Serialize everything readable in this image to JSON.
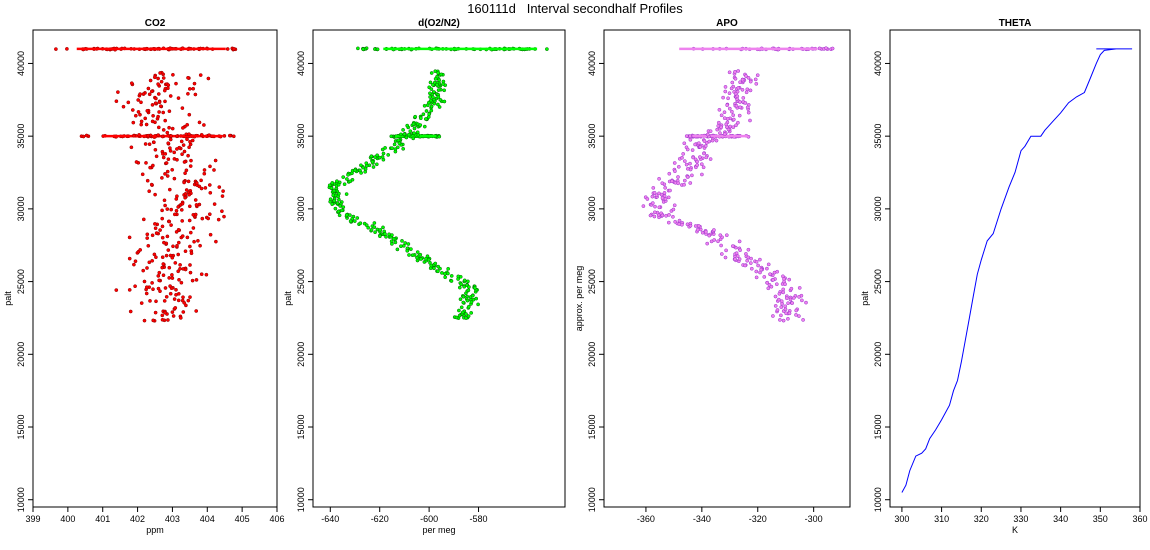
{
  "figure": {
    "title": "160111d   Interval secondhalf Profiles"
  },
  "chart_data": [
    {
      "type": "scatter",
      "title": "CO2",
      "xlabel": "ppm",
      "ylabel": "palt",
      "xlim": [
        399,
        406
      ],
      "ylim": [
        9500,
        42300
      ],
      "xticks": [
        399,
        400,
        401,
        402,
        403,
        404,
        405,
        406
      ],
      "yticks": [
        10000,
        15000,
        20000,
        25000,
        30000,
        35000,
        40000
      ],
      "color": "#ff0000",
      "edge_color": "#8b0000",
      "marker": "open-circle",
      "grid": false,
      "bands": [
        {
          "y": 41000,
          "x_range": [
            399.4,
            405.1
          ],
          "density": "dense"
        },
        {
          "y": 35000,
          "x_range": [
            400.3,
            404.9
          ],
          "density": "dense"
        }
      ],
      "profile": [
        {
          "y": 22300,
          "x": 403.0
        },
        {
          "y": 23500,
          "x": 403.2
        },
        {
          "y": 24500,
          "x": 402.5
        },
        {
          "y": 25500,
          "x": 403.0
        },
        {
          "y": 26500,
          "x": 402.7
        },
        {
          "y": 27500,
          "x": 403.0
        },
        {
          "y": 28500,
          "x": 403.2
        },
        {
          "y": 29500,
          "x": 403.5
        },
        {
          "y": 30500,
          "x": 403.3
        },
        {
          "y": 31500,
          "x": 403.6
        },
        {
          "y": 32500,
          "x": 403.2
        },
        {
          "y": 33500,
          "x": 403.0
        },
        {
          "y": 34500,
          "x": 402.9
        },
        {
          "y": 35500,
          "x": 402.8
        },
        {
          "y": 36500,
          "x": 402.6
        },
        {
          "y": 37500,
          "x": 402.5
        },
        {
          "y": 38500,
          "x": 402.6
        },
        {
          "y": 39500,
          "x": 402.8
        }
      ],
      "spread": 0.9
    },
    {
      "type": "scatter",
      "title": "d(O2/N2)",
      "xlabel": "per meg",
      "ylabel": "palt",
      "xlim": [
        -647,
        -545
      ],
      "ylim": [
        9500,
        42300
      ],
      "xticks": [
        -640,
        -620,
        -600,
        -580
      ],
      "yticks": [
        10000,
        15000,
        20000,
        25000,
        30000,
        35000,
        40000
      ],
      "color": "#00ff00",
      "edge_color": "#006400",
      "marker": "open-circle",
      "grid": false,
      "bands": [
        {
          "y": 41000,
          "x_range": [
            -631,
            -548
          ],
          "density": "dense"
        },
        {
          "y": 35000,
          "x_range": [
            -617,
            -595
          ],
          "density": "dense"
        }
      ],
      "profile": [
        {
          "y": 22300,
          "x": -588
        },
        {
          "y": 23500,
          "x": -584
        },
        {
          "y": 24500,
          "x": -583
        },
        {
          "y": 25500,
          "x": -592
        },
        {
          "y": 26500,
          "x": -603
        },
        {
          "y": 27500,
          "x": -611
        },
        {
          "y": 28500,
          "x": -620
        },
        {
          "y": 29500,
          "x": -634
        },
        {
          "y": 30500,
          "x": -638
        },
        {
          "y": 31500,
          "x": -639
        },
        {
          "y": 32500,
          "x": -629
        },
        {
          "y": 33500,
          "x": -620
        },
        {
          "y": 34500,
          "x": -612
        },
        {
          "y": 35500,
          "x": -607
        },
        {
          "y": 36500,
          "x": -601
        },
        {
          "y": 37500,
          "x": -597
        },
        {
          "y": 38500,
          "x": -596
        },
        {
          "y": 39500,
          "x": -596
        }
      ],
      "spread": 3.5
    },
    {
      "type": "scatter",
      "title": "APO",
      "xlabel": "",
      "ylabel": "approx. per meg",
      "xlim": [
        -375,
        -287
      ],
      "ylim": [
        9500,
        42300
      ],
      "xticks": [
        -360,
        -340,
        -320,
        -300
      ],
      "yticks": [
        10000,
        15000,
        20000,
        25000,
        30000,
        35000,
        40000
      ],
      "color": "#ee82ee",
      "edge_color": "#9932cc",
      "marker": "open-circle",
      "grid": false,
      "bands": [
        {
          "y": 41000,
          "x_range": [
            -358,
            -292
          ],
          "density": "sparse-left"
        },
        {
          "y": 35000,
          "x_range": [
            -347,
            -321
          ],
          "density": "dense"
        }
      ],
      "profile": [
        {
          "y": 22300,
          "x": -310
        },
        {
          "y": 23500,
          "x": -309
        },
        {
          "y": 24500,
          "x": -310
        },
        {
          "y": 25500,
          "x": -316
        },
        {
          "y": 26500,
          "x": -324
        },
        {
          "y": 27500,
          "x": -331
        },
        {
          "y": 28500,
          "x": -338
        },
        {
          "y": 29500,
          "x": -354
        },
        {
          "y": 30500,
          "x": -356
        },
        {
          "y": 31500,
          "x": -353
        },
        {
          "y": 32500,
          "x": -346
        },
        {
          "y": 33500,
          "x": -343
        },
        {
          "y": 34500,
          "x": -340
        },
        {
          "y": 35500,
          "x": -331
        },
        {
          "y": 36500,
          "x": -329
        },
        {
          "y": 37500,
          "x": -327
        },
        {
          "y": 38500,
          "x": -326
        },
        {
          "y": 39500,
          "x": -326
        }
      ],
      "spread": 5
    },
    {
      "type": "line",
      "title": "THETA",
      "xlabel": "K",
      "ylabel": "palt",
      "xlim": [
        297,
        360
      ],
      "ylim": [
        9500,
        42300
      ],
      "xticks": [
        300,
        310,
        320,
        330,
        340,
        350,
        360
      ],
      "yticks": [
        10000,
        15000,
        20000,
        25000,
        30000,
        35000,
        40000
      ],
      "color": "#0000ff",
      "grid": false,
      "x": [
        300.0,
        301.0,
        302.0,
        303.5,
        305.0,
        306.0,
        307.0,
        308.5,
        310.0,
        312.0,
        313.0,
        314.0,
        315.0,
        316.0,
        317.0,
        318.0,
        319.0,
        320.0,
        321.5,
        323.0,
        325.0,
        327.0,
        328.5,
        330.0,
        331.0,
        332.5,
        335.0,
        336.0,
        338.0,
        340.0,
        342.0,
        344.0,
        346.0,
        347.5,
        349.0,
        350.0,
        351.0,
        354.0,
        358.0,
        349.0,
        355.0
      ],
      "y": [
        10500,
        11000,
        12000,
        13000,
        13200,
        13500,
        14200,
        14800,
        15500,
        16500,
        17500,
        18200,
        19500,
        21000,
        22500,
        24000,
        25500,
        26500,
        27800,
        28300,
        30000,
        31500,
        32500,
        34000,
        34300,
        35000,
        35000,
        35400,
        36000,
        36600,
        37300,
        37700,
        38000,
        39000,
        40000,
        40600,
        40900,
        41000,
        41000,
        41000,
        41000
      ]
    }
  ]
}
